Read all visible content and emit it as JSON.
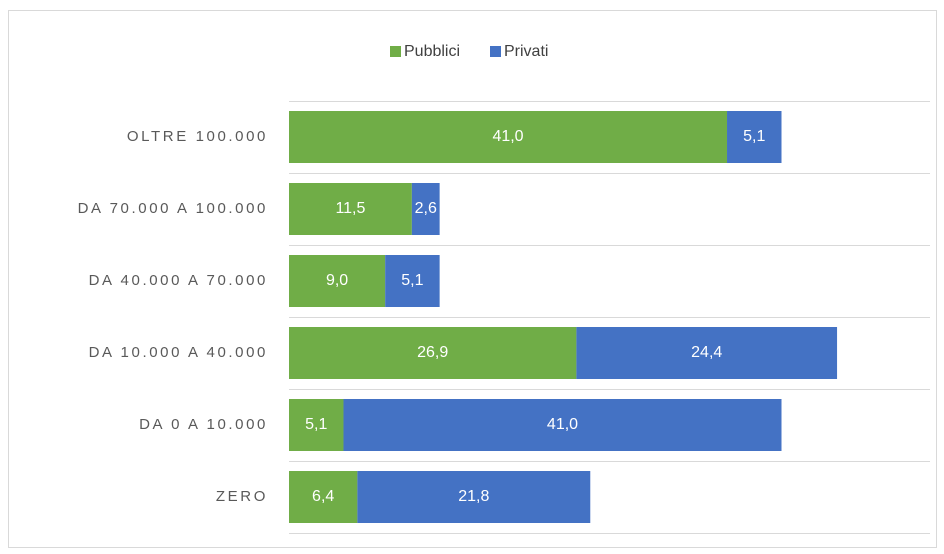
{
  "chart_data": {
    "type": "stacked-barh",
    "categories": [
      "OLTRE 100.000",
      "DA 70.000 A 100.000",
      "DA 40.000 A 70.000",
      "DA 10.000 A 40.000",
      "DA 0 A 10.000",
      "ZERO"
    ],
    "series": [
      {
        "name": "Pubblici",
        "color": "#70ad47",
        "values": [
          41.0,
          11.5,
          9.0,
          26.9,
          5.1,
          6.4
        ],
        "value_labels": [
          "41,0",
          "11,5",
          "9,0",
          "26,9",
          "5,1",
          "6,4"
        ]
      },
      {
        "name": "Privati",
        "color": "#4472c4",
        "values": [
          5.1,
          2.6,
          5.1,
          24.4,
          41.0,
          21.8
        ],
        "value_labels": [
          "5,1",
          "2,6",
          "5,1",
          "24,4",
          "41,0",
          "21,8"
        ]
      }
    ],
    "xlim": [
      0,
      60
    ],
    "grid": true,
    "legend": "top"
  }
}
